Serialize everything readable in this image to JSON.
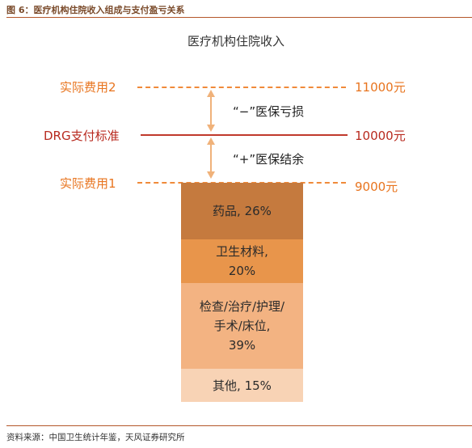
{
  "figure_title": "图 6：医疗机构住院收入组成与支付盈亏关系",
  "chart_title": "医疗机构住院收入",
  "levels": {
    "actual2": {
      "label": "实际费用2",
      "value": "11000元"
    },
    "drg": {
      "label": "DRG支付标准",
      "value": "10000元"
    },
    "actual1": {
      "label": "实际费用1",
      "value": "9000元"
    }
  },
  "notes": {
    "loss": "“−”医保亏损",
    "surplus": "“+”医保结余"
  },
  "segments": [
    {
      "name": "drugs",
      "lines": [
        "药品, 26%"
      ],
      "share": 26,
      "color": "#c57a3e"
    },
    {
      "name": "materials",
      "lines": [
        "卫生材料,",
        "20%"
      ],
      "share": 20,
      "color": "#e8954b"
    },
    {
      "name": "services",
      "lines": [
        "检查/治疗/护理/",
        "手术/床位,",
        "39%"
      ],
      "share": 39,
      "color": "#f3b382"
    },
    {
      "name": "other",
      "lines": [
        "其他, 15%"
      ],
      "share": 15,
      "color": "#f8d3b5"
    }
  ],
  "colors": {
    "orange": "#f08a3a",
    "red": "#c0392b",
    "arrow": "#f0b27a"
  },
  "source": "资料来源：中国卫生统计年鉴，天风证券研究所"
}
